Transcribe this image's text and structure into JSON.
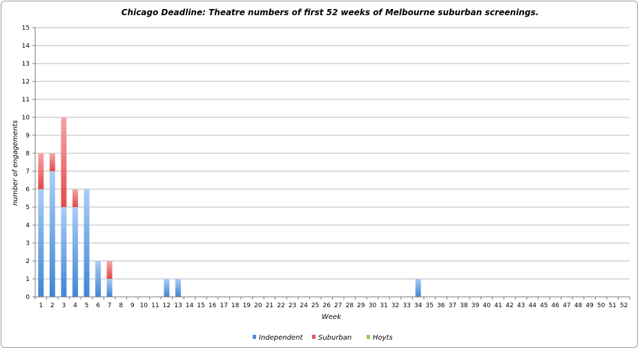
{
  "chart_data": {
    "type": "bar",
    "stacked": true,
    "title": "Chicago Deadline: Theatre numbers of first 52 weeks of Melbourne suburban screenings.",
    "xlabel": "Week",
    "ylabel": "number of engagements",
    "ylim": [
      0,
      15
    ],
    "yticks": [
      0,
      1,
      2,
      3,
      4,
      5,
      6,
      7,
      8,
      9,
      10,
      11,
      12,
      13,
      14,
      15
    ],
    "grid": true,
    "legend_position": "bottom",
    "categories": [
      "1",
      "2",
      "3",
      "4",
      "5",
      "6",
      "7",
      "8",
      "9",
      "10",
      "11",
      "12",
      "13",
      "14",
      "15",
      "16",
      "17",
      "18",
      "19",
      "20",
      "21",
      "22",
      "23",
      "24",
      "25",
      "26",
      "27",
      "28",
      "29",
      "30",
      "31",
      "32",
      "33",
      "34",
      "35",
      "36",
      "37",
      "38",
      "39",
      "40",
      "41",
      "42",
      "43",
      "44",
      "45",
      "46",
      "47",
      "48",
      "49",
      "50",
      "51",
      "52"
    ],
    "series": [
      {
        "name": "Independent",
        "color": "#4a90d9",
        "values": [
          6,
          7,
          5,
          5,
          6,
          2,
          1,
          0,
          0,
          0,
          0,
          1,
          1,
          0,
          0,
          0,
          0,
          0,
          0,
          0,
          0,
          0,
          0,
          0,
          0,
          0,
          0,
          0,
          0,
          0,
          0,
          0,
          0,
          1,
          0,
          0,
          0,
          0,
          0,
          0,
          0,
          0,
          0,
          0,
          0,
          0,
          0,
          0,
          0,
          0,
          0,
          0
        ]
      },
      {
        "name": "Suburban",
        "color": "#e8595a",
        "values": [
          2,
          1,
          5,
          1,
          0,
          0,
          1,
          0,
          0,
          0,
          0,
          0,
          0,
          0,
          0,
          0,
          0,
          0,
          0,
          0,
          0,
          0,
          0,
          0,
          0,
          0,
          0,
          0,
          0,
          0,
          0,
          0,
          0,
          0,
          0,
          0,
          0,
          0,
          0,
          0,
          0,
          0,
          0,
          0,
          0,
          0,
          0,
          0,
          0,
          0,
          0,
          0
        ]
      },
      {
        "name": "Hoyts",
        "color": "#8fd45a",
        "values": [
          0,
          0,
          0,
          0,
          0,
          0,
          0,
          0,
          0,
          0,
          0,
          0,
          0,
          0,
          0,
          0,
          0,
          0,
          0,
          0,
          0,
          0,
          0,
          0,
          0,
          0,
          0,
          0,
          0,
          0,
          0,
          0,
          0,
          0,
          0,
          0,
          0,
          0,
          0,
          0,
          0,
          0,
          0,
          0,
          0,
          0,
          0,
          0,
          0,
          0,
          0,
          0
        ]
      }
    ]
  }
}
